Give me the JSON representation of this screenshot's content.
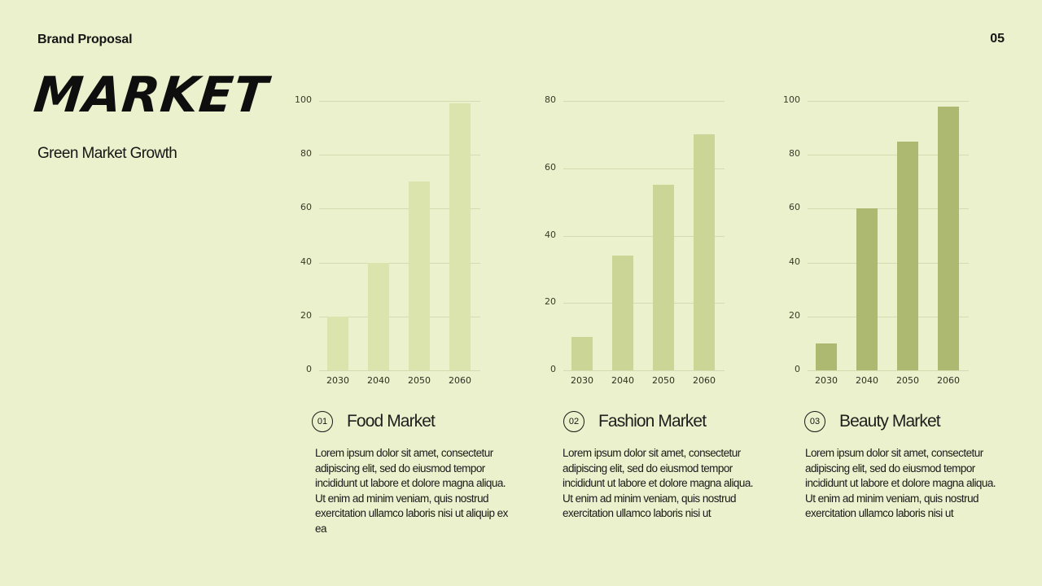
{
  "header": {
    "brand": "Brand Proposal",
    "page_number": "05",
    "title": "MARKET",
    "subtitle": "Green Market Growth"
  },
  "colors": {
    "background": "#ebf1cc",
    "food_bar": "#dce4ae",
    "fashion_bar": "#cbd595",
    "beauty_bar": "#adb870",
    "grid": "#d4dbb0"
  },
  "sections": [
    {
      "number": "01",
      "name": "Food Market",
      "body": "Lorem ipsum dolor sit amet, consectetur adipiscing elit, sed do eiusmod tempor incididunt ut labore et dolore magna aliqua. Ut enim ad minim veniam, quis nostrud exercitation ullamco laboris nisi ut aliquip ex ea"
    },
    {
      "number": "02",
      "name": "Fashion Market",
      "body": "Lorem ipsum dolor sit amet, consectetur adipiscing elit, sed do eiusmod tempor incididunt ut labore et dolore magna aliqua. Ut enim ad minim veniam, quis nostrud exercitation ullamco laboris nisi ut"
    },
    {
      "number": "03",
      "name": "Beauty Market",
      "body": "Lorem ipsum dolor sit amet, consectetur adipiscing elit, sed do eiusmod tempor incididunt ut labore et dolore magna aliqua. Ut enim ad minim veniam, quis nostrud exercitation ullamco laboris nisi ut"
    }
  ],
  "chart_data": [
    {
      "type": "bar",
      "title": "Food Market",
      "categories": [
        "2030",
        "2040",
        "2050",
        "2060"
      ],
      "values": [
        20,
        40,
        70,
        99
      ],
      "yticks": [
        "0",
        "20",
        "40",
        "60",
        "80",
        "100"
      ],
      "ylim": [
        0,
        100
      ],
      "grid": true,
      "color": "#dce4ae"
    },
    {
      "type": "bar",
      "title": "Fashion Market",
      "categories": [
        "2030",
        "2040",
        "2050",
        "2060"
      ],
      "values": [
        10,
        34,
        55,
        70
      ],
      "yticks": [
        "0",
        "20",
        "40",
        "60",
        "80"
      ],
      "ylim": [
        0,
        80
      ],
      "grid": true,
      "color": "#cbd595"
    },
    {
      "type": "bar",
      "title": "Beauty Market",
      "categories": [
        "2030",
        "2040",
        "2050",
        "2060"
      ],
      "values": [
        10,
        60,
        85,
        98
      ],
      "yticks": [
        "0",
        "20",
        "40",
        "60",
        "80",
        "100"
      ],
      "ylim": [
        0,
        100
      ],
      "grid": true,
      "color": "#adb870"
    }
  ]
}
